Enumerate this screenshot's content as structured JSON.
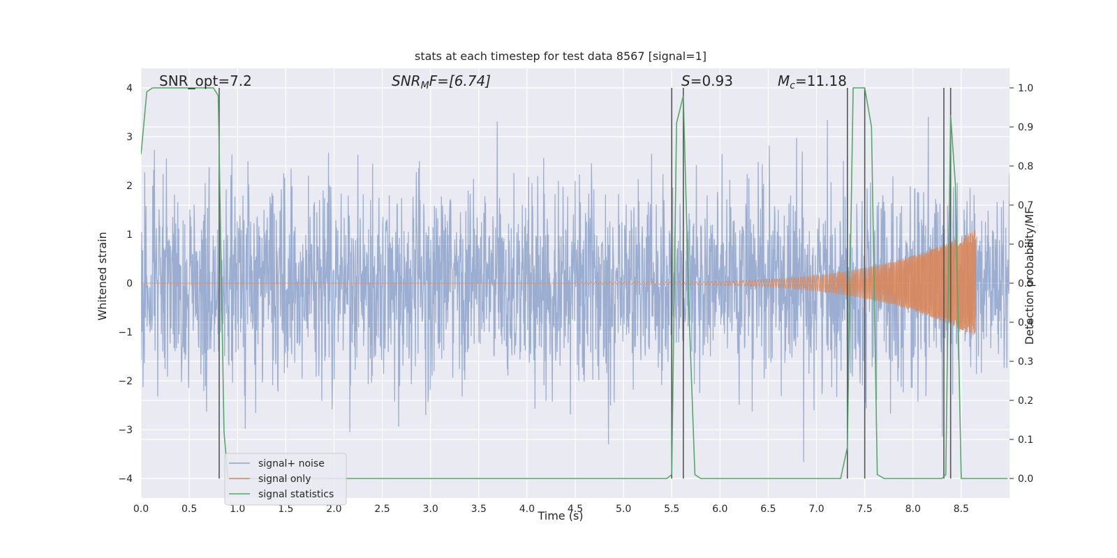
{
  "chart_data": {
    "type": "line",
    "title": "stats at each timestep for test data 8567 [signal=1]",
    "xlabel": "Time (s)",
    "ylabel": "Whitened strain",
    "ylabel_right": "Detection probability/MF",
    "xlim": [
      0,
      9.0
    ],
    "ylim": [
      -4.4,
      4.4
    ],
    "ylim_right": [
      -0.05,
      1.05
    ],
    "x_ticks": [
      "0.0",
      "0.5",
      "1.0",
      "1.5",
      "2.0",
      "2.5",
      "3.0",
      "3.5",
      "4.0",
      "4.5",
      "5.0",
      "5.5",
      "6.0",
      "6.5",
      "7.0",
      "7.5",
      "8.0",
      "8.5"
    ],
    "y_ticks": [
      "4",
      "3",
      "2",
      "1",
      "0",
      "−1",
      "−2",
      "−3",
      "−4"
    ],
    "y_right_ticks": [
      "1.0",
      "0.9",
      "0.8",
      "0.7",
      "0.6",
      "0.5",
      "0.4",
      "0.3",
      "0.2",
      "0.1",
      "0.0"
    ],
    "grid": true,
    "legend_position": "lower-left",
    "annotations": {
      "snr_opt": "SNR_opt=7.2",
      "snr_mf_prefix": "SNR",
      "snr_mf_sub": "M",
      "snr_mf_suffix": "F=[6.74]",
      "s_var": "S",
      "s_val": "=0.93",
      "mc_var": "M",
      "mc_sub": "c",
      "mc_val": "=11.18"
    },
    "colors": {
      "background": "#eaeaf2",
      "grid": "#ffffff",
      "noise": "#4c72b0",
      "signal": "#dd8452",
      "statistics": "#55a868",
      "vlines": "#555555"
    },
    "series": [
      {
        "name": "signal+ noise",
        "axis": "left",
        "description_value": "whitened strain noise, approx amplitude ±1.6 with spikes to ±4",
        "noise_sigma": 1.0,
        "duration": 9.0
      },
      {
        "name": "signal only",
        "axis": "left",
        "chirp_start": 4.5,
        "chirp_end": 8.65,
        "peak_amplitude": 1.1
      },
      {
        "name": "signal statistics",
        "axis": "right",
        "x": [
          0.0,
          0.06,
          0.12,
          0.5,
          0.75,
          0.8,
          0.86,
          0.9,
          5.45,
          5.5,
          5.55,
          5.62,
          5.68,
          5.74,
          5.8,
          5.9,
          7.25,
          7.32,
          7.38,
          7.5,
          7.57,
          7.63,
          7.7,
          8.3,
          8.34,
          8.39,
          8.44,
          8.5,
          8.98
        ],
        "y": [
          0.83,
          0.99,
          1.0,
          1.0,
          1.0,
          0.98,
          0.12,
          0.0,
          0.0,
          0.01,
          0.91,
          0.98,
          0.42,
          0.01,
          0.0,
          0.0,
          0.0,
          0.08,
          1.0,
          1.0,
          0.9,
          0.01,
          0.0,
          0.0,
          0.01,
          0.93,
          0.75,
          0.0,
          0.0
        ]
      }
    ],
    "vertical_lines_x": [
      0.81,
      5.5,
      5.62,
      7.32,
      7.5,
      8.32,
      8.39
    ]
  }
}
